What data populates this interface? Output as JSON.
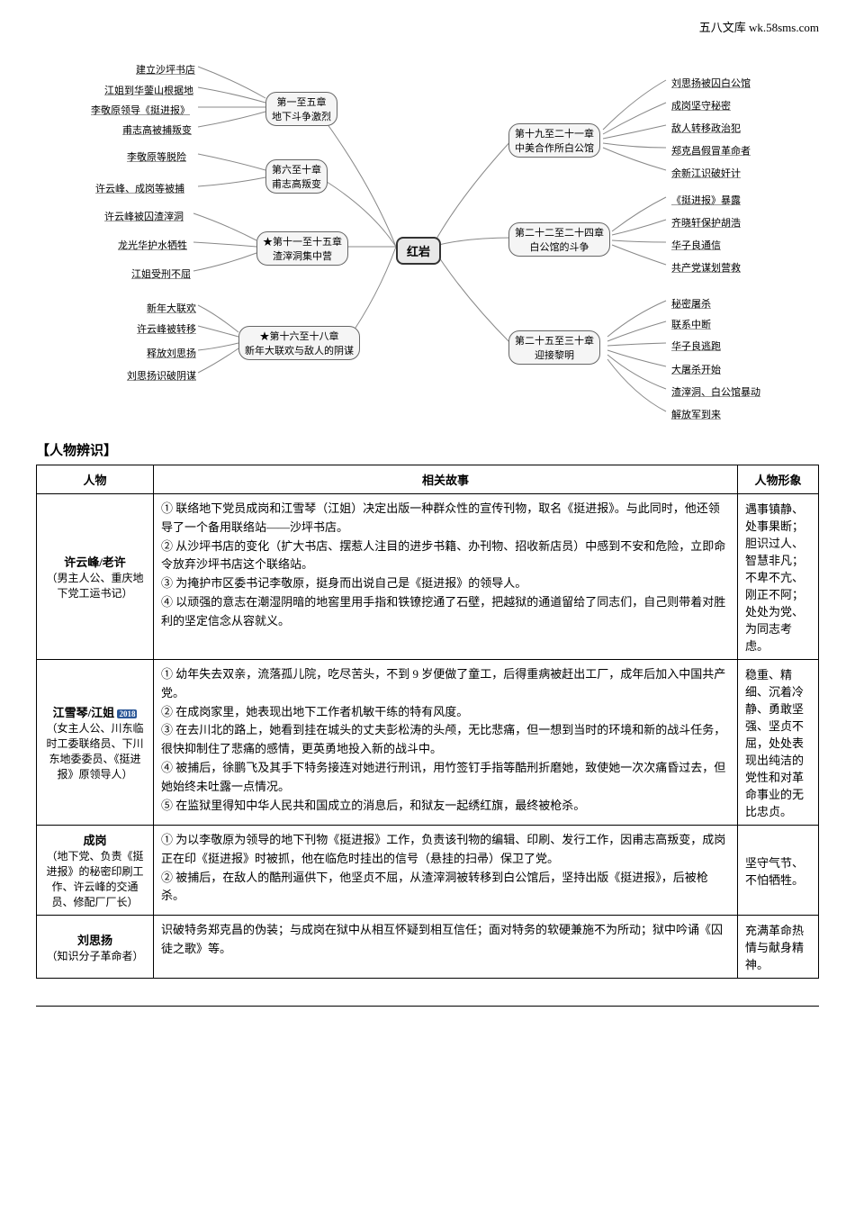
{
  "header_right": "五八文库 wk.58sms.com",
  "mindmap": {
    "center": "红岩",
    "left_groups": [
      {
        "title_line1": "第一至五章",
        "title_line2": "地下斗争激烈",
        "leaves": [
          "建立沙坪书店",
          "江姐到华蓥山根据地",
          "李敬原领导《挺进报》",
          "甫志高被捕叛变"
        ]
      },
      {
        "title_line1": "第六至十章",
        "title_line2": "甫志高叛变",
        "leaves": [
          "李敬原等脱险",
          "许云峰、成岗等被捕"
        ]
      },
      {
        "title_line1": "★第十一至十五章",
        "title_line2": "渣滓洞集中营",
        "leaves": [
          "许云峰被囚渣滓洞",
          "龙光华护水牺牲",
          "江姐受刑不屈"
        ]
      },
      {
        "title_line1": "★第十六至十八章",
        "title_line2": "新年大联欢与敌人的阴谋",
        "leaves": [
          "新年大联欢",
          "许云峰被转移",
          "释放刘思扬",
          "刘思扬识破阴谋"
        ]
      }
    ],
    "right_groups": [
      {
        "title_line1": "第十九至二十一章",
        "title_line2": "中美合作所白公馆",
        "leaves": [
          "刘思扬被囚白公馆",
          "成岗坚守秘密",
          "敌人转移政治犯",
          "郑克昌假冒革命者",
          "余新江识破奸计"
        ]
      },
      {
        "title_line1": "第二十二至二十四章",
        "title_line2": "白公馆的斗争",
        "leaves": [
          "《挺进报》暴露",
          "齐晓轩保护胡浩",
          "华子良通信",
          "共产党谋划营救"
        ]
      },
      {
        "title_line1": "第二十五至三十章",
        "title_line2": "迎接黎明",
        "leaves": [
          "秘密屠杀",
          "联系中断",
          "华子良逃跑",
          "大屠杀开始",
          "渣滓洞、白公馆暴动",
          "解放军到来"
        ]
      }
    ]
  },
  "section_title": "【人物辨识】",
  "table": {
    "headers": [
      "人物",
      "相关故事",
      "人物形象"
    ],
    "rows": [
      {
        "name_main": "许云峰/老许",
        "name_sub": "（男主人公、重庆地下党工运书记）",
        "story": "① 联络地下党员成岗和江雪琴（江姐）决定出版一种群众性的宣传刊物，取名《挺进报》。与此同时，他还领导了一个备用联络站——沙坪书店。\n② 从沙坪书店的变化（扩大书店、摆惹人注目的进步书籍、办刊物、招收新店员）中感到不安和危险，立即命令放弃沙坪书店这个联络站。\n③ 为掩护市区委书记李敬原，挺身而出说自己是《挺进报》的领导人。\n④ 以顽强的意志在潮湿阴暗的地窖里用手指和铁镣挖通了石壁，把越狱的通道留给了同志们，自己则带着对胜利的坚定信念从容就义。",
        "trait": "遇事镇静、处事果断；胆识过人、智慧非凡；不卑不亢、刚正不阿；处处为党、为同志考虑。"
      },
      {
        "name_main": "江雪琴/江姐",
        "name_badge": "2018",
        "name_sub": "（女主人公、川东临时工委联络员、下川东地委委员、《挺进报》原领导人）",
        "story": "① 幼年失去双亲，流落孤儿院，吃尽苦头，不到 9 岁便做了童工，后得重病被赶出工厂，成年后加入中国共产党。\n② 在成岗家里，她表现出地下工作者机敏干练的特有风度。\n③ 在去川北的路上，她看到挂在城头的丈夫彭松涛的头颅，无比悲痛，但一想到当时的环境和新的战斗任务，很快抑制住了悲痛的感情，更英勇地投入新的战斗中。\n④ 被捕后，徐鹏飞及其手下特务接连对她进行刑讯，用竹签钉手指等酷刑折磨她，致使她一次次痛昏过去，但她始终未吐露一点情况。\n⑤ 在监狱里得知中华人民共和国成立的消息后，和狱友一起绣红旗，最终被枪杀。",
        "trait": "稳重、精细、沉着冷静、勇敢坚强、坚贞不屈，处处表现出纯洁的党性和对革命事业的无比忠贞。"
      },
      {
        "name_main": "成岗",
        "name_sub": "（地下党、负责《挺进报》的秘密印刷工作、许云峰的交通员、修配厂厂长）",
        "story": "① 为以李敬原为领导的地下刊物《挺进报》工作，负责该刊物的编辑、印刷、发行工作，因甫志高叛变，成岗正在印《挺进报》时被抓，他在临危时挂出的信号（悬挂的扫帚）保卫了党。\n② 被捕后，在敌人的酷刑逼供下，他坚贞不屈，从渣滓洞被转移到白公馆后，坚持出版《挺进报》，后被枪杀。",
        "trait": "坚守气节、不怕牺牲。"
      },
      {
        "name_main": "刘思扬",
        "name_sub": "（知识分子革命者）",
        "story": "识破特务郑克昌的伪装；与成岗在狱中从相互怀疑到相互信任；面对特务的软硬兼施不为所动；狱中吟诵《囚徒之歌》等。",
        "trait": "充满革命热情与献身精神。"
      }
    ]
  }
}
